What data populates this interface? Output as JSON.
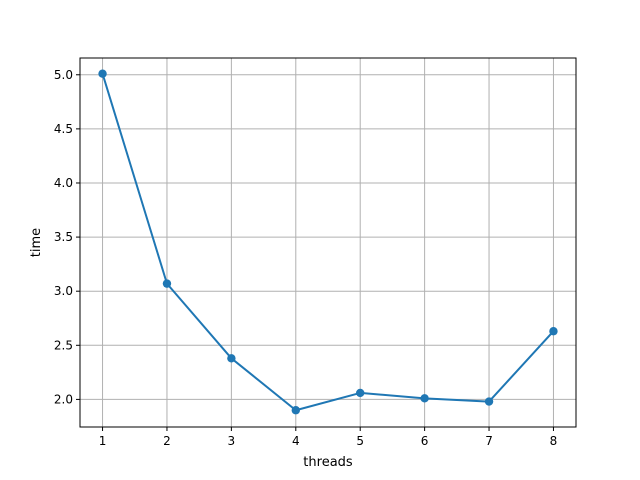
{
  "chart_data": {
    "type": "line",
    "title": "",
    "xlabel": "threads",
    "ylabel": "time",
    "x": [
      1,
      2,
      3,
      4,
      5,
      6,
      7,
      8
    ],
    "series": [
      {
        "values": [
          5.01,
          3.07,
          2.38,
          1.9,
          2.06,
          2.01,
          1.98,
          2.63
        ],
        "color": "#1f77b4",
        "markers": true
      }
    ],
    "xlim": [
      0.65,
      8.35
    ],
    "ylim": [
      1.745,
      5.155
    ],
    "xticks": [
      1,
      2,
      3,
      4,
      5,
      6,
      7,
      8
    ],
    "xtick_labels": [
      "1",
      "2",
      "3",
      "4",
      "5",
      "6",
      "7",
      "8"
    ],
    "yticks": [
      2.0,
      2.5,
      3.0,
      3.5,
      4.0,
      4.5,
      5.0
    ],
    "ytick_labels": [
      "2.0",
      "2.5",
      "3.0",
      "3.5",
      "4.0",
      "4.5",
      "5.0"
    ],
    "grid": true,
    "legend": false
  }
}
